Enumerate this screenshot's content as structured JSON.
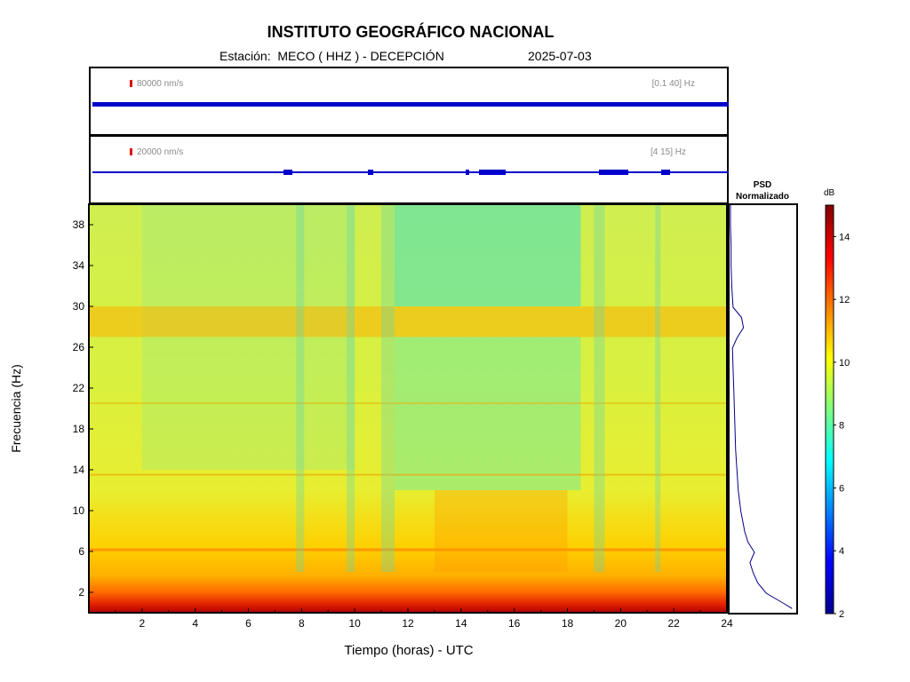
{
  "header": {
    "title": "INSTITUTO GEOGRÁFICO NACIONAL",
    "station": "Estación:  MECO ( HHZ ) - DECEPCIÓN",
    "date": "2025-07-03"
  },
  "traces": [
    {
      "scale_label": "80000 nm/s",
      "band_label": "[0.1 40] Hz",
      "color": "#0000cc"
    },
    {
      "scale_label": "20000 nm/s",
      "band_label": "[4 15] Hz",
      "color": "#0000cc"
    }
  ],
  "psd": {
    "title_line1": "PSD",
    "title_line2": "Normalizado"
  },
  "colorbar": {
    "label": "dB",
    "range": [
      2,
      15
    ],
    "ticks": [
      "2",
      "4",
      "6",
      "8",
      "10",
      "12",
      "14"
    ]
  },
  "chart_data": {
    "type": "heatmap",
    "title": "INSTITUTO GEOGRÁFICO NACIONAL",
    "xlabel": "Tiempo (horas) - UTC",
    "ylabel": "Frecuencia  (Hz)",
    "xlim": [
      0,
      24
    ],
    "ylim": [
      0,
      40
    ],
    "xticks": [
      2,
      4,
      6,
      8,
      10,
      12,
      14,
      16,
      18,
      20,
      22,
      24
    ],
    "yticks": [
      2,
      6,
      10,
      14,
      18,
      22,
      26,
      30,
      34,
      38
    ],
    "colormap": "jet",
    "color_units": "dB",
    "color_range": [
      2,
      15
    ],
    "frequency_bands_db": [
      {
        "freq_range": [
          0,
          1
        ],
        "db": 14
      },
      {
        "freq_range": [
          1,
          3
        ],
        "db": 12
      },
      {
        "freq_range": [
          3,
          8
        ],
        "db": 11
      },
      {
        "freq_range": [
          8,
          26
        ],
        "db": 9
      },
      {
        "freq_range": [
          27,
          30
        ],
        "db": 11
      },
      {
        "freq_range": [
          30,
          40
        ],
        "db": 8.5
      }
    ],
    "quiet_period_hours": [
      11.5,
      18.5
    ],
    "psd_normalized": {
      "frequency": [
        0.5,
        1,
        2,
        3,
        4,
        5,
        6,
        7,
        8,
        10,
        12,
        14,
        16,
        18,
        20,
        22,
        24,
        26,
        27,
        28,
        29,
        30,
        32,
        34,
        36,
        38,
        40
      ],
      "value": [
        0.95,
        0.82,
        0.55,
        0.42,
        0.35,
        0.3,
        0.37,
        0.27,
        0.22,
        0.16,
        0.12,
        0.1,
        0.08,
        0.07,
        0.06,
        0.05,
        0.04,
        0.03,
        0.1,
        0.2,
        0.17,
        0.04,
        0.02,
        0.01,
        0.01,
        0.0,
        0.0
      ]
    }
  }
}
